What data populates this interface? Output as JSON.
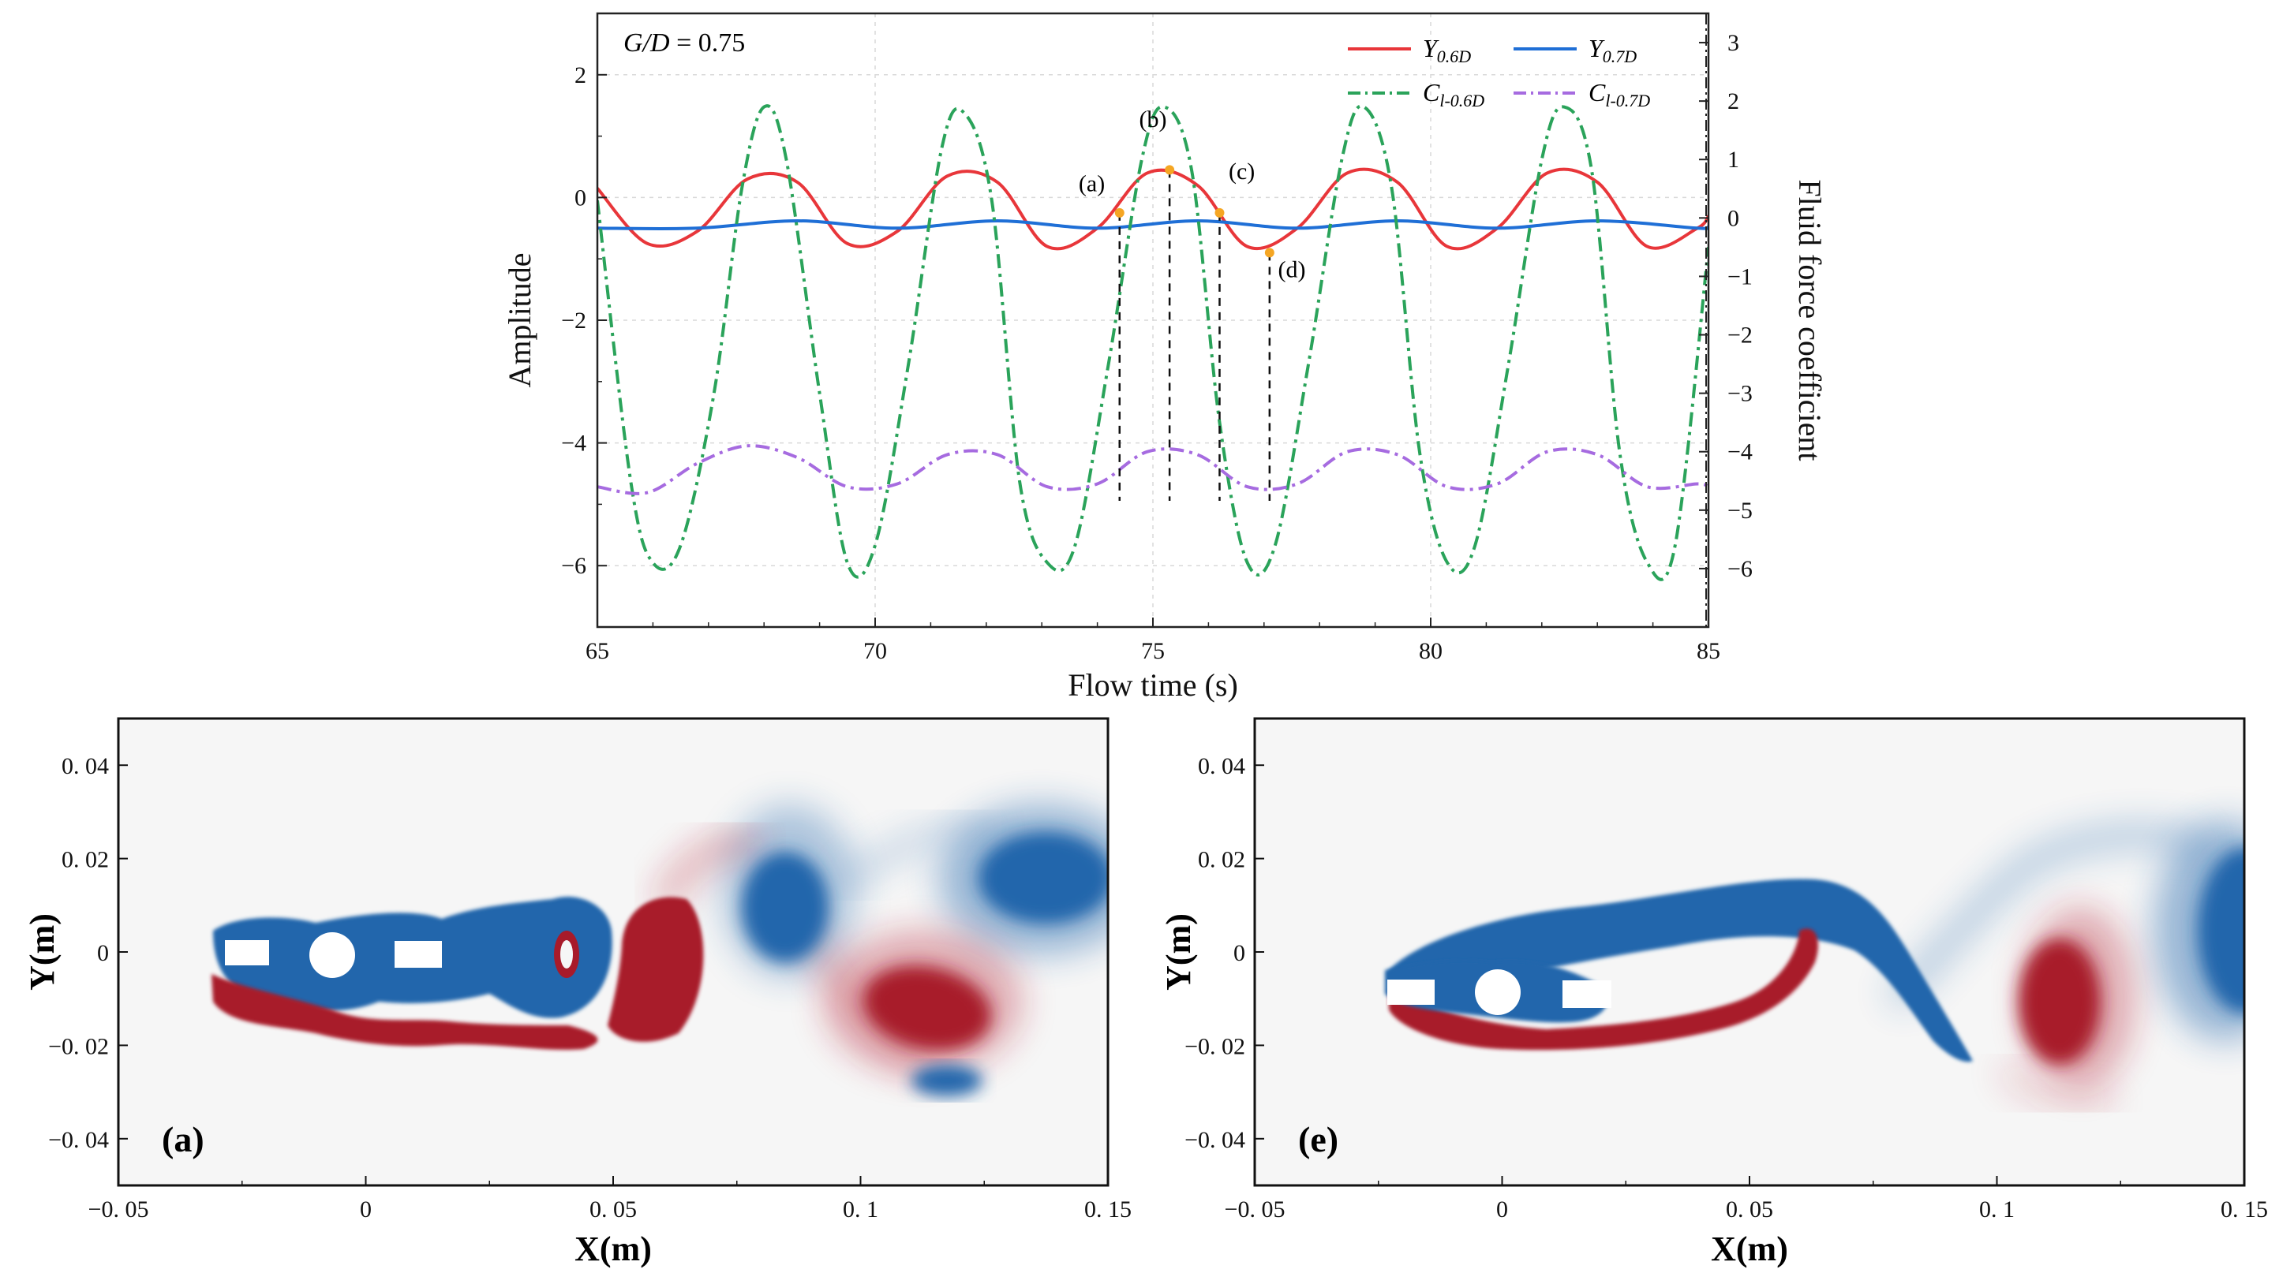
{
  "chart_data": [
    {
      "type": "line",
      "annotation": {
        "lhs": "G/D",
        "rhs": " = 0.75"
      },
      "xlabel": "Flow time (s)",
      "ylabel": "Amplitude",
      "ylabel_right": "Fluid force coefficient",
      "xlim": [
        65,
        85
      ],
      "ylim": [
        -7,
        3
      ],
      "ylim_right": [
        -7,
        3.5
      ],
      "xticks": [
        "65",
        "70",
        "75",
        "80",
        "85"
      ],
      "yticks": [
        "2",
        "0",
        "−2",
        "−4",
        "−6"
      ],
      "yticks_right": [
        "3",
        "2",
        "1",
        "0",
        "−1",
        "−2",
        "−3",
        "−4",
        "−5",
        "−6"
      ],
      "grid": true,
      "legend_position": "top-right",
      "period": 3.6,
      "series": [
        {
          "name": "Y0.6D",
          "label_main": "Y",
          "label_sub": "0.6D",
          "axis": "left",
          "color": "#e8363a",
          "style": "solid",
          "x": [
            65.0,
            65.9,
            66.8,
            67.7,
            68.6,
            69.5,
            70.4,
            71.3,
            72.2,
            73.1,
            74.0,
            74.9,
            75.8,
            76.7,
            77.6,
            78.5,
            79.4,
            80.3,
            81.2,
            82.1,
            83.0,
            83.9,
            84.8,
            85.0
          ],
          "values": [
            0.15,
            -0.75,
            -0.55,
            0.3,
            0.25,
            -0.75,
            -0.55,
            0.35,
            0.25,
            -0.8,
            -0.5,
            0.4,
            0.2,
            -0.8,
            -0.5,
            0.4,
            0.25,
            -0.8,
            -0.5,
            0.4,
            0.25,
            -0.8,
            -0.5,
            -0.3
          ]
        },
        {
          "name": "Y0.7D",
          "label_main": "Y",
          "label_sub": "0.7D",
          "axis": "left",
          "color": "#1f6fd6",
          "style": "solid",
          "x": [
            65.0,
            66.8,
            68.6,
            70.4,
            72.2,
            74.0,
            75.8,
            77.6,
            79.4,
            81.2,
            83.0,
            84.8,
            85.0
          ],
          "values": [
            -0.5,
            -0.5,
            -0.38,
            -0.5,
            -0.38,
            -0.5,
            -0.38,
            -0.5,
            -0.38,
            -0.5,
            -0.38,
            -0.5,
            -0.48
          ]
        },
        {
          "name": "Cl-0.6D",
          "label_main": "C",
          "label_sub": "l-0.6D",
          "axis": "right",
          "color": "#2aa35a",
          "style": "dashdot",
          "x": [
            65.0,
            65.6,
            66.0,
            66.5,
            67.1,
            67.6,
            68.0,
            68.4,
            69.0,
            69.5,
            70.0,
            70.6,
            71.2,
            71.6,
            72.1,
            72.6,
            73.1,
            73.6,
            74.2,
            74.8,
            75.2,
            75.7,
            76.2,
            76.7,
            77.2,
            77.8,
            78.4,
            78.8,
            79.3,
            79.8,
            80.3,
            80.8,
            81.4,
            82.0,
            82.4,
            82.9,
            83.4,
            83.9,
            84.4,
            85.0
          ],
          "values": [
            0.3,
            -4.5,
            -5.9,
            -5.6,
            -3.0,
            0.5,
            1.9,
            1.0,
            -3.0,
            -5.9,
            -5.6,
            -2.5,
            1.2,
            1.8,
            0.3,
            -4.5,
            -5.9,
            -5.6,
            -2.5,
            1.0,
            1.9,
            0.8,
            -3.5,
            -5.9,
            -5.6,
            -2.5,
            1.0,
            1.9,
            0.5,
            -4.0,
            -5.9,
            -5.6,
            -2.5,
            1.0,
            1.9,
            0.8,
            -4.0,
            -5.9,
            -5.6,
            -0.5
          ]
        },
        {
          "name": "Cl-0.7D",
          "label_main": "C",
          "label_sub": "l-0.7D",
          "axis": "right",
          "color": "#a66be0",
          "style": "dashdot",
          "x": [
            65.0,
            65.9,
            66.8,
            67.7,
            68.6,
            69.5,
            70.4,
            71.3,
            72.2,
            73.1,
            74.0,
            74.9,
            75.8,
            76.7,
            77.6,
            78.5,
            79.4,
            80.3,
            81.2,
            82.1,
            83.0,
            83.9,
            84.8,
            85.0
          ],
          "values": [
            -4.6,
            -4.7,
            -4.2,
            -3.9,
            -4.1,
            -4.6,
            -4.55,
            -4.05,
            -4.05,
            -4.6,
            -4.55,
            -4.0,
            -4.05,
            -4.6,
            -4.55,
            -4.0,
            -4.05,
            -4.6,
            -4.55,
            -4.0,
            -4.05,
            -4.6,
            -4.55,
            -4.6
          ]
        }
      ],
      "markers": [
        {
          "label": "(a)",
          "x": 74.4,
          "y": -0.25,
          "label_x": 73.9,
          "label_y": 0.1
        },
        {
          "label": "(b)",
          "x": 75.3,
          "y": 0.45,
          "label_x": 75.0,
          "label_y": 1.15
        },
        {
          "label": "(c)",
          "x": 76.2,
          "y": -0.25,
          "label_x": 76.6,
          "label_y": 0.3
        },
        {
          "label": "(d)",
          "x": 77.1,
          "y": -0.9,
          "label_x": 77.5,
          "label_y": -1.3
        }
      ]
    },
    {
      "type": "heatmap",
      "panel": "(a)",
      "xlabel": "X(m)",
      "ylabel": "Y(m)",
      "xlim": [
        -0.05,
        0.15
      ],
      "ylim": [
        -0.05,
        0.05
      ],
      "xticks": [
        "−0. 05",
        "0",
        "0. 05",
        "0. 1",
        "0. 15"
      ],
      "yticks": [
        "0. 04",
        "0. 02",
        "0",
        "−0. 02",
        "−0. 04"
      ],
      "colors": {
        "positive": "#a81a2a",
        "negative": "#2166ac",
        "background": "#f6f6f6"
      }
    },
    {
      "type": "heatmap",
      "panel": "(e)",
      "xlabel": "X(m)",
      "ylabel": "Y(m)",
      "xlim": [
        -0.05,
        0.15
      ],
      "ylim": [
        -0.05,
        0.05
      ],
      "xticks": [
        "−0. 05",
        "0",
        "0. 05",
        "0. 1",
        "0. 15"
      ],
      "yticks": [
        "0. 04",
        "0. 02",
        "0",
        "−0. 02",
        "−0. 04"
      ],
      "colors": {
        "positive": "#a81a2a",
        "negative": "#2166ac",
        "background": "#f6f6f6"
      }
    }
  ]
}
